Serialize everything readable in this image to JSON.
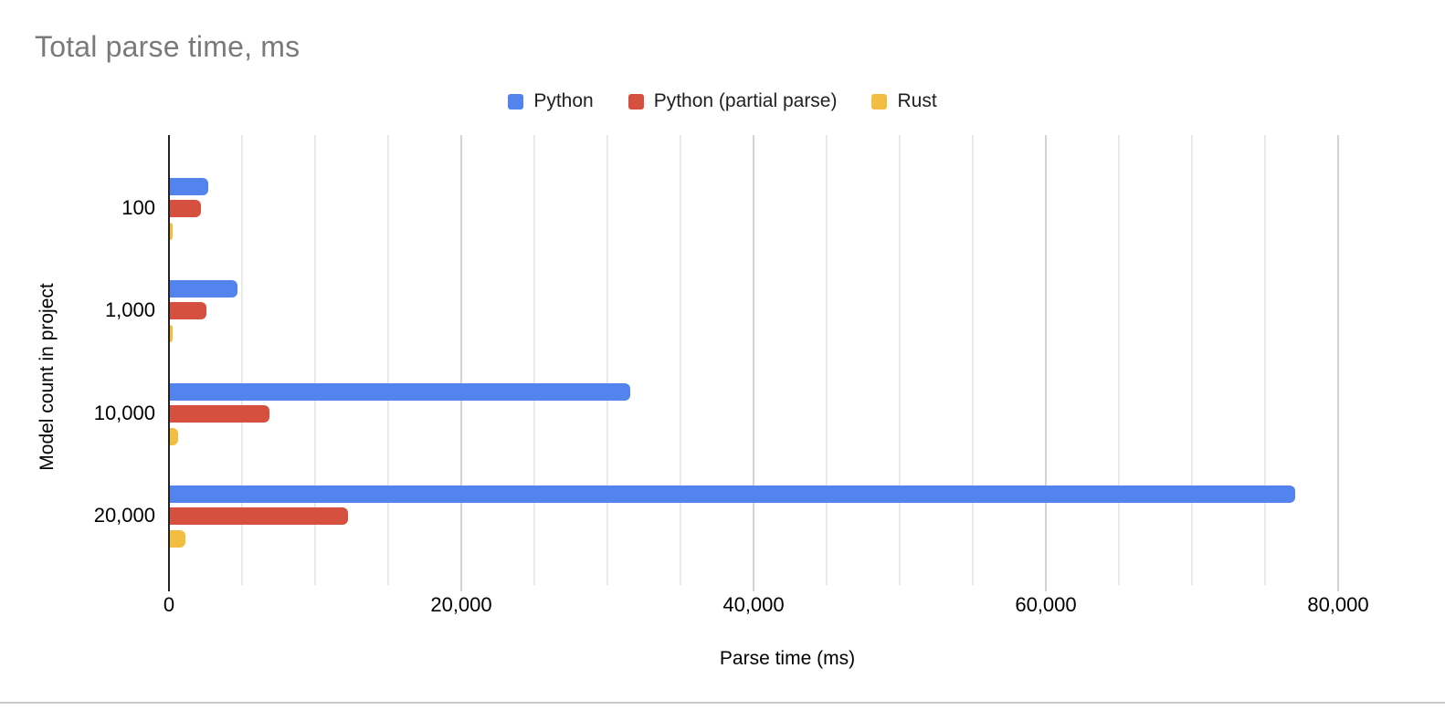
{
  "page": {
    "background": "#ffffff",
    "bottom_border_color": "#c9c9c9"
  },
  "chart_data": {
    "type": "bar",
    "orientation": "horizontal",
    "title": "Total parse time, ms",
    "title_color": "#7a7a7a",
    "xlabel": "Parse time (ms)",
    "ylabel": "Model count in project",
    "categories": [
      "100",
      "1,000",
      "10,000",
      "20,000"
    ],
    "series": [
      {
        "name": "Python",
        "color": "#5383EC",
        "values": [
          2600,
          4600,
          31500,
          77000
        ]
      },
      {
        "name": "Python (partial parse)",
        "color": "#D6503F",
        "values": [
          2100,
          2500,
          6800,
          12200
        ]
      },
      {
        "name": "Rust",
        "color": "#F1BE42",
        "values": [
          100,
          150,
          550,
          1050
        ]
      }
    ],
    "x_axis": {
      "min": 0,
      "max": 80000,
      "tick_step": 20000,
      "gridline_step": 5000,
      "tick_labels": [
        "0",
        "20,000",
        "40,000",
        "60,000",
        "80,000"
      ]
    },
    "legend_position": "top",
    "grid": true,
    "colors": {
      "axis_line": "#212121",
      "gridline_minor": "#e9e9e9",
      "gridline_major": "#d2d2d2",
      "label_text": "#000000"
    }
  }
}
